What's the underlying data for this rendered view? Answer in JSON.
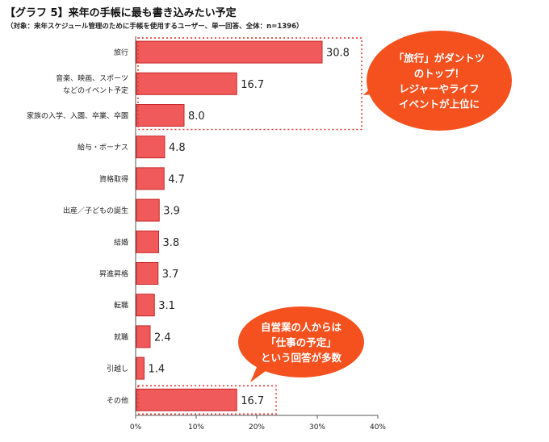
{
  "title": "【グラフ 5】来年の手帳に最も書き込みたい予定",
  "subtitle": "（対象：来年スケジュール管理のために手帳を使用するユーザー、単一回答、全体：n=1396）",
  "chart_data": {
    "type": "bar",
    "orientation": "horizontal",
    "categories": [
      [
        "旅行"
      ],
      [
        "音楽、映画、スポーツ",
        "などのイベント予定"
      ],
      [
        "家族の入学、入園、卒業、卒園"
      ],
      [
        "給与・ボーナス"
      ],
      [
        "資格取得"
      ],
      [
        "出産／子どもの誕生"
      ],
      [
        "結婚"
      ],
      [
        "昇進昇格"
      ],
      [
        "転職"
      ],
      [
        "就職"
      ],
      [
        "引越し"
      ],
      [
        "その他"
      ]
    ],
    "values": [
      30.8,
      16.7,
      8.0,
      4.8,
      4.7,
      3.9,
      3.8,
      3.7,
      3.1,
      2.4,
      1.4,
      16.7
    ],
    "value_labels": [
      "30.8",
      "16.7",
      "8.0",
      "4.8",
      "4.7",
      "3.9",
      "3.8",
      "3.7",
      "3.1",
      "2.4",
      "1.4",
      "16.7"
    ],
    "xlim": [
      0,
      40
    ],
    "ticks": [
      "0%",
      "10%",
      "20%",
      "30%",
      "40%"
    ],
    "bar_color": "#f05a5a",
    "bar_edge_color": "#c62828",
    "grid": false,
    "highlights": [
      {
        "rows": [
          0,
          1,
          2
        ],
        "color": "#e53935",
        "style": "dotted"
      },
      {
        "rows": [
          11
        ],
        "color": "#e53935",
        "style": "dotted"
      }
    ],
    "annotations": [
      {
        "lines": [
          "「旅行」がダントツ",
          "のトップ！",
          "レジャーやライフ",
          "イベントが上位に"
        ],
        "color": "#f4511e"
      },
      {
        "lines": [
          "自営業の人からは",
          "「仕事の予定」",
          "という回答が多数"
        ],
        "color": "#f4511e"
      }
    ]
  }
}
